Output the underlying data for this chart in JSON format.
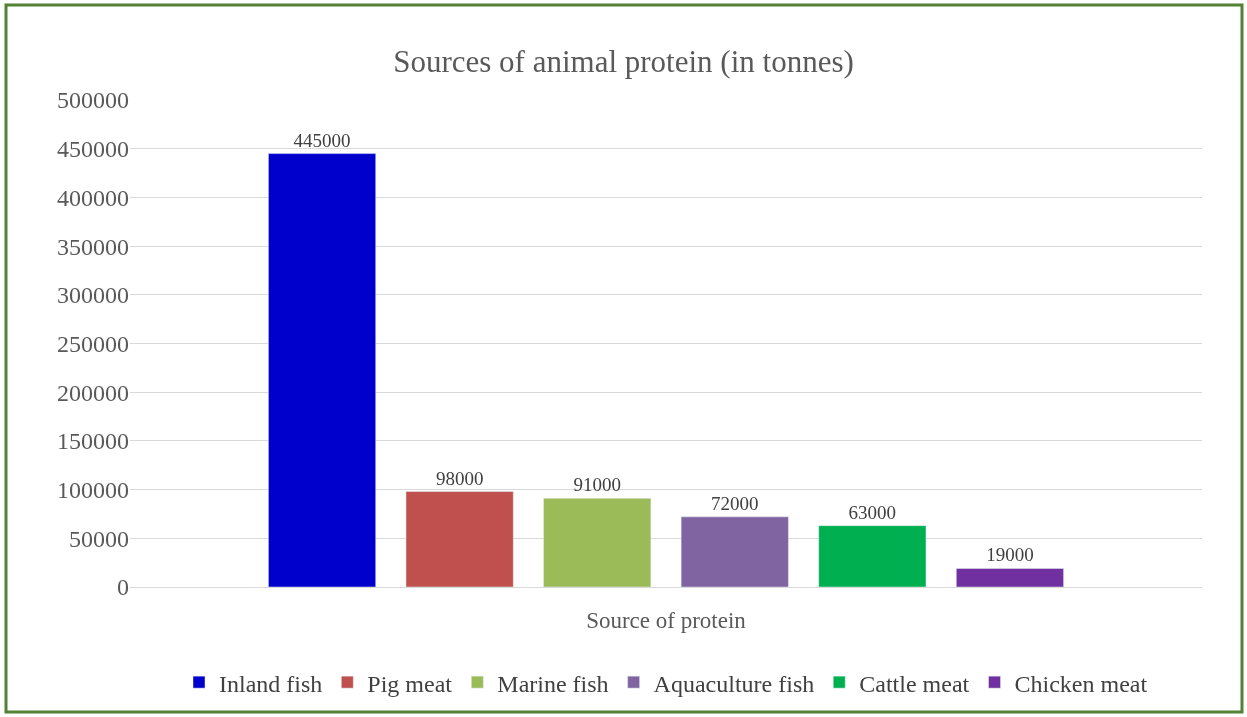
{
  "chart_data": {
    "type": "bar",
    "title": "Sources of animal protein (in tonnes)",
    "xlabel": "Source of protein",
    "categories": [
      null
    ],
    "series": [
      {
        "name": "Inland fish",
        "color": "#0000cc",
        "values": [
          445000
        ]
      },
      {
        "name": "Pig meat",
        "color": "#c0504d",
        "values": [
          98000
        ]
      },
      {
        "name": "Marine fish",
        "color": "#9bbb59",
        "values": [
          91000
        ]
      },
      {
        "name": "Aquaculture fish",
        "color": "#8064a2",
        "values": [
          72000
        ]
      },
      {
        "name": "Cattle meat",
        "color": "#00b050",
        "values": [
          63000
        ]
      },
      {
        "name": "Chicken meat",
        "color": "#7030a0",
        "values": [
          19000
        ]
      }
    ],
    "ylim": [
      0,
      500000
    ],
    "yticks": [
      0,
      50000,
      100000,
      150000,
      200000,
      250000,
      300000,
      350000,
      400000,
      450000,
      500000
    ],
    "grid": "y",
    "legend": "bottom",
    "data_labels": true
  }
}
